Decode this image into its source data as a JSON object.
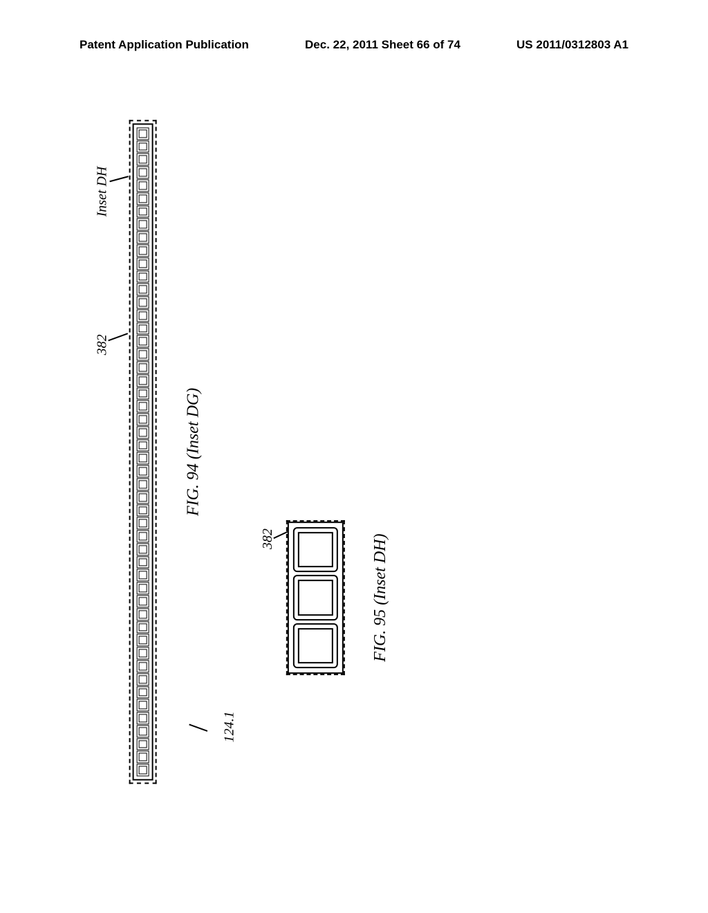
{
  "header": {
    "left": "Patent Application Publication",
    "center": "Dec. 22, 2011  Sheet 66 of 74",
    "right": "US 2011/0312803 A1"
  },
  "fig94": {
    "caption": "FIG. 94 (Inset DG)",
    "cell_count": 50,
    "ref_382": "382",
    "ref_inset_dh": "Inset DH",
    "ref_124": "124.1"
  },
  "fig95": {
    "caption": "FIG. 95 (Inset DH)",
    "cell_count": 3,
    "ref_382": "382"
  }
}
